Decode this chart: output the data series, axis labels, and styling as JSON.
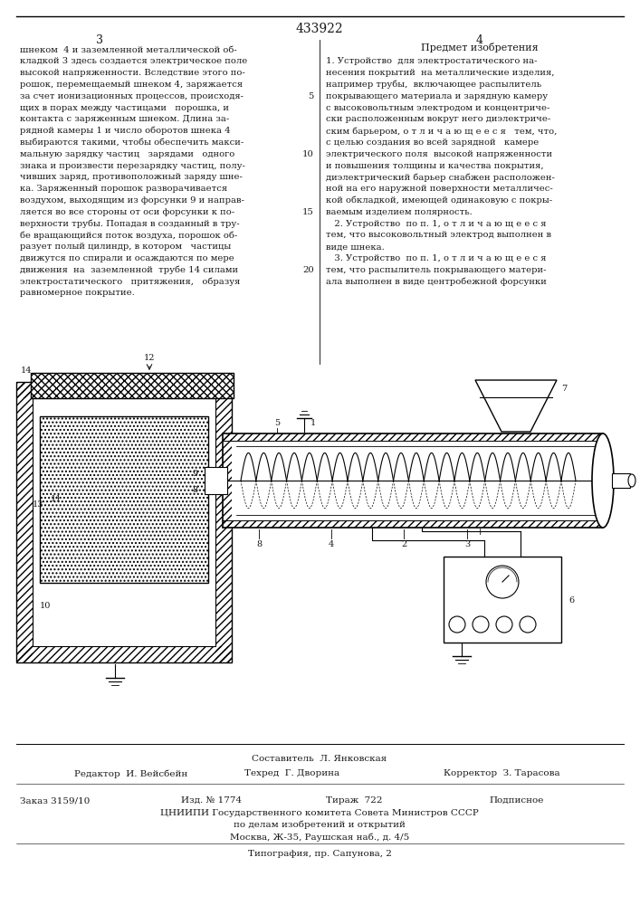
{
  "patent_number": "433922",
  "page_numbers": [
    "3",
    "4"
  ],
  "left_column_text": [
    "шнеком  4 и заземленной металлической об-",
    "кладкой 3 здесь создается электрическое поле",
    "высокой напряженности. Вследствие этого по-",
    "рошок, перемещаемый шнеком 4, заряжается",
    "за счет ионизационных процессов, происходя-",
    "щих в порах между частицами   порошка, и",
    "контакта с заряженным шнеком. Длина за-",
    "рядной камеры 1 и число оборотов шнека 4",
    "выбираются такими, чтобы обеспечить макси-",
    "мальную зарядку частиц   зарядами   одного",
    "знака и произвести перезарядку частиц, полу-",
    "чивших заряд, противоположный заряду шне-",
    "ка. Заряженный порошок разворачивается",
    "воздухом, выходящим из форсунки 9 и направ-",
    "ляется во все стороны от оси форсунки к по-",
    "верхности трубы. Попадая в созданный в тру-",
    "бе вращающийся поток воздуха, порошок об-",
    "разует полый цилиндр, в котором   частицы",
    "движутся по спирали и осаждаются по мере",
    "движения  на  заземленной  трубе 14 силами",
    "электростатического   притяжения,   образуя",
    "равномерное покрытие."
  ],
  "line_number_rows": [
    4,
    9,
    14,
    19
  ],
  "line_numbers": [
    5,
    10,
    15,
    20
  ],
  "right_header": "Предмет изобретения",
  "right_column_text": [
    "1. Устройство  для электростатического на-",
    "несения покрытий  на металлические изделия,",
    "например трубы,  включающее распылитель",
    "покрывающего материала и зарядную камеру",
    "с высоковольтным электродом и концентриче-",
    "ски расположенным вокруг него диэлектриче-",
    "ским барьером, о т л и ч а ю щ е е с я   тем, что,",
    "с целью создания во всей зарядной   камере",
    "электрического поля  высокой напряженности",
    "и повышения толщины и качества покрытия,",
    "диэлектрический барьер снабжен расположен-",
    "ной на его наружной поверхности металличес-",
    "кой обкладкой, имеющей одинаковую с покры-",
    "ваемым изделием полярность.",
    "   2. Устройство  по п. 1, о т л и ч а ю щ е е с я",
    "тем, что высоковольтный электрод выполнен в",
    "виде шнека.",
    "   3. Устройство  по п. 1, о т л и ч а ю щ е е с я",
    "тем, что распылитель покрывающего матери-",
    "ала выполнен в виде центробежной форсунки"
  ],
  "footer_composer": "Составитель  Л. Янковская",
  "footer_editor": "Редактор  И. Вейсбейн",
  "footer_tech": "Техред  Г. Дворина",
  "footer_corrector": "Корректор  З. Тарасова",
  "footer_order": "Заказ 3159/10",
  "footer_izd": "Изд. № 1774",
  "footer_tirazh": "Тираж  722",
  "footer_podpisnoe": "Подписное",
  "footer_tsniippi": "ЦНИИПИ Государственного комитета Совета Министров СССР",
  "footer_po_delam": "по делам изобретений и открытий",
  "footer_moscow": "Москва, Ж-35, Раушская наб., д. 4/5",
  "footer_tipografiya": "Типография, пр. Сапунова, 2",
  "bg_color": "#ffffff",
  "text_color": "#1a1a1a"
}
